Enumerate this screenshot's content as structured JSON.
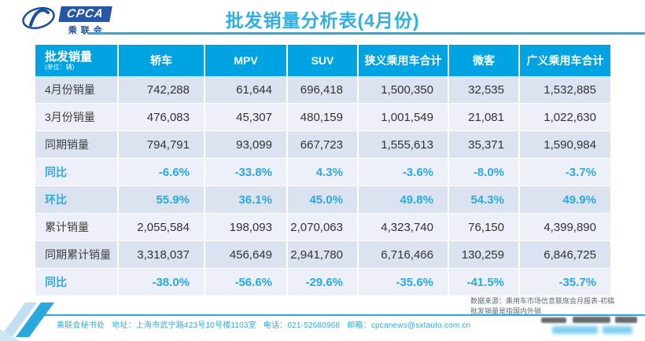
{
  "brand": {
    "logo_text": "CPCA",
    "logo_sub": "乘联会"
  },
  "header": {
    "title": "批发销量分析表(4月份)"
  },
  "table": {
    "unit_note": "(单位：辆)",
    "columns": [
      "批发销量",
      "轿车",
      "MPV",
      "SUV",
      "狭义乘用车合计",
      "微客",
      "广义乘用车合计"
    ],
    "rows": [
      {
        "label": "4月份销量",
        "type": "value",
        "cells": [
          "742,288",
          "61,644",
          "696,418",
          "1,500,350",
          "32,535",
          "1,532,885"
        ]
      },
      {
        "label": "3月份销量",
        "type": "value",
        "cells": [
          "476,083",
          "45,307",
          "480,159",
          "1,001,549",
          "21,081",
          "1,022,630"
        ]
      },
      {
        "label": "同期销量",
        "type": "value",
        "cells": [
          "794,791",
          "93,099",
          "667,723",
          "1,555,613",
          "35,371",
          "1,590,984"
        ]
      },
      {
        "label": "同比",
        "type": "percent",
        "cells": [
          "-6.6%",
          "-33.8%",
          "4.3%",
          "-3.6%",
          "-8.0%",
          "-3.7%"
        ]
      },
      {
        "label": "环比",
        "type": "percent",
        "cells": [
          "55.9%",
          "36.1%",
          "45.0%",
          "49.8%",
          "54.3%",
          "49.9%"
        ]
      },
      {
        "label": "累计销量",
        "type": "value",
        "cells": [
          "2,055,584",
          "198,093",
          "2,070,063",
          "4,323,740",
          "76,150",
          "4,399,890"
        ]
      },
      {
        "label": "同期累计销量",
        "type": "value",
        "cells": [
          "3,318,037",
          "456,649",
          "2,941,780",
          "6,716,466",
          "130,259",
          "6,846,725"
        ]
      },
      {
        "label": "同比",
        "type": "percent",
        "cells": [
          "-38.0%",
          "-56.6%",
          "-29.6%",
          "-35.6%",
          "-41.5%",
          "-35.7%"
        ]
      }
    ]
  },
  "notes": {
    "source_line1": "数据来源：乘用车市场信息联席会月报表-初稿",
    "source_line2": "批发销量是指国内外销"
  },
  "footer": {
    "text": "乘联会秘书处   地址：上海市武宁路423号10号楼1103室   电话：021-52680968   邮箱：cpcanews@sxtauto.com.cn"
  },
  "colors": {
    "accent": "#00a3e2",
    "title": "#30afe3",
    "percent_text": "#2baae2",
    "row_dark": "#dbe3f1",
    "row_light": "#edf0f9",
    "value_text": "#333333"
  }
}
